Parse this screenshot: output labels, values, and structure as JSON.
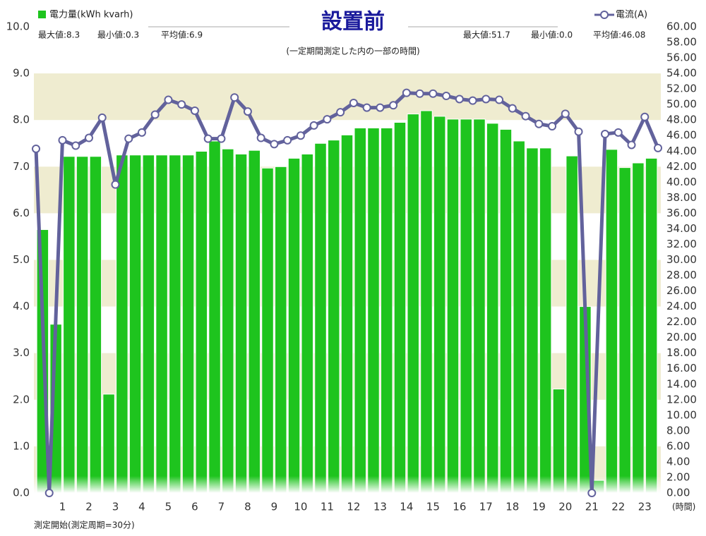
{
  "chart_data": {
    "type": "bar",
    "title": "設置前",
    "subtitle": "(一定期間測定した内の一部の時間)",
    "left_stats": [
      "最大値:8.3",
      "最小値:0.3",
      "平均値:6.9"
    ],
    "right_stats": [
      "最大値:51.7",
      "最小値:0.0",
      "平均値:46.08"
    ],
    "x_unit": "(時間)",
    "footer": "測定開始(測定周期=30分)",
    "xlim": [
      0,
      23.5
    ],
    "xticks": [
      1,
      2,
      3,
      4,
      5,
      6,
      7,
      8,
      9,
      10,
      11,
      12,
      13,
      14,
      15,
      16,
      17,
      18,
      19,
      20,
      21,
      22,
      23
    ],
    "ylim": [
      0,
      10
    ],
    "yticks": [
      {
        "value": 0,
        "label": "0.0"
      },
      {
        "value": 1,
        "label": "1.0"
      },
      {
        "value": 2,
        "label": "2.0"
      },
      {
        "value": 3,
        "label": "3.0"
      },
      {
        "value": 4,
        "label": "4.0"
      },
      {
        "value": 5,
        "label": "5.0"
      },
      {
        "value": 6,
        "label": "6.0"
      },
      {
        "value": 7,
        "label": "7.0"
      },
      {
        "value": 8,
        "label": "8.0"
      },
      {
        "value": 9,
        "label": "9.0"
      },
      {
        "value": 10,
        "label": "10.0"
      }
    ],
    "y2lim": [
      0,
      60
    ],
    "y2ticks": [
      {
        "value": 0,
        "label": "0.00"
      },
      {
        "value": 2,
        "label": "2.00"
      },
      {
        "value": 4,
        "label": "4.00"
      },
      {
        "value": 6,
        "label": "6.00"
      },
      {
        "value": 8,
        "label": "8.00"
      },
      {
        "value": 10,
        "label": "10.00"
      },
      {
        "value": 12,
        "label": "12.00"
      },
      {
        "value": 14,
        "label": "14.00"
      },
      {
        "value": 16,
        "label": "16.00"
      },
      {
        "value": 18,
        "label": "18.00"
      },
      {
        "value": 20,
        "label": "20.00"
      },
      {
        "value": 22,
        "label": "22.00"
      },
      {
        "value": 24,
        "label": "24.00"
      },
      {
        "value": 26,
        "label": "26.00"
      },
      {
        "value": 28,
        "label": "28.00"
      },
      {
        "value": 30,
        "label": "30.00"
      },
      {
        "value": 32,
        "label": "32.00"
      },
      {
        "value": 34,
        "label": "34.00"
      },
      {
        "value": 36,
        "label": "36.00"
      },
      {
        "value": 38,
        "label": "38.00"
      },
      {
        "value": 40,
        "label": "40.00"
      },
      {
        "value": 42,
        "label": "42.00"
      },
      {
        "value": 44,
        "label": "44.00"
      },
      {
        "value": 46,
        "label": "46.00"
      },
      {
        "value": 48,
        "label": "48.00"
      },
      {
        "value": 50,
        "label": "50.00"
      },
      {
        "value": 52,
        "label": "52.00"
      },
      {
        "value": 54,
        "label": "54.00"
      },
      {
        "value": 56,
        "label": "56.00"
      },
      {
        "value": 58,
        "label": "58.00"
      },
      {
        "value": 60,
        "label": "60.00"
      }
    ],
    "series": [
      {
        "name": "電力量(kWh kvarh)",
        "type": "bar",
        "color": "#1ec41e",
        "x": [
          0.25,
          0.75,
          1.25,
          1.75,
          2.25,
          2.75,
          3.25,
          3.75,
          4.25,
          4.75,
          5.25,
          5.75,
          6.25,
          6.75,
          7.25,
          7.75,
          8.25,
          8.75,
          9.25,
          9.75,
          10.25,
          10.75,
          11.25,
          11.75,
          12.25,
          12.75,
          13.25,
          13.75,
          14.25,
          14.75,
          15.25,
          15.75,
          16.25,
          16.75,
          17.25,
          17.75,
          18.25,
          18.75,
          19.25,
          19.75,
          20.25,
          20.75,
          21.25,
          21.75,
          22.25,
          22.75,
          23.25
        ],
        "values": [
          5.65,
          3.62,
          7.22,
          7.22,
          7.22,
          2.12,
          7.25,
          7.25,
          7.25,
          7.25,
          7.25,
          7.25,
          7.33,
          7.55,
          7.38,
          7.27,
          7.35,
          6.97,
          7.0,
          7.18,
          7.27,
          7.5,
          7.57,
          7.68,
          7.83,
          7.83,
          7.83,
          7.95,
          8.13,
          8.2,
          8.08,
          8.02,
          8.02,
          8.02,
          7.93,
          7.8,
          7.55,
          7.4,
          7.4,
          2.23,
          7.23,
          4.0,
          0.27,
          7.37,
          6.98,
          7.08,
          7.18
        ]
      },
      {
        "name": "電流(A)",
        "type": "line",
        "axis": "y2",
        "color": "#62629c",
        "x": [
          0,
          0.5,
          1,
          1.5,
          2,
          2.5,
          3,
          3.5,
          4,
          4.5,
          5,
          5.5,
          6,
          6.5,
          7,
          7.5,
          8,
          8.5,
          9,
          9.5,
          10,
          10.5,
          11,
          11.5,
          12,
          12.5,
          13,
          13.5,
          14,
          14.5,
          15,
          15.5,
          16,
          16.5,
          17,
          17.5,
          18,
          18.5,
          19,
          19.5,
          20,
          20.5,
          21,
          21.5,
          22,
          22.5,
          23,
          23.5
        ],
        "values": [
          44.3,
          0.0,
          45.4,
          44.7,
          45.7,
          48.3,
          39.7,
          45.6,
          46.4,
          48.7,
          50.6,
          50.0,
          49.2,
          45.6,
          45.6,
          50.9,
          49.1,
          45.7,
          44.9,
          45.4,
          46.0,
          47.3,
          48.1,
          49.0,
          50.2,
          49.6,
          49.6,
          49.9,
          51.5,
          51.4,
          51.4,
          51.1,
          50.7,
          50.5,
          50.7,
          50.6,
          49.5,
          48.5,
          47.5,
          47.2,
          48.8,
          46.5,
          0.0,
          46.2,
          46.4,
          44.8,
          48.4,
          44.4
        ]
      }
    ]
  }
}
